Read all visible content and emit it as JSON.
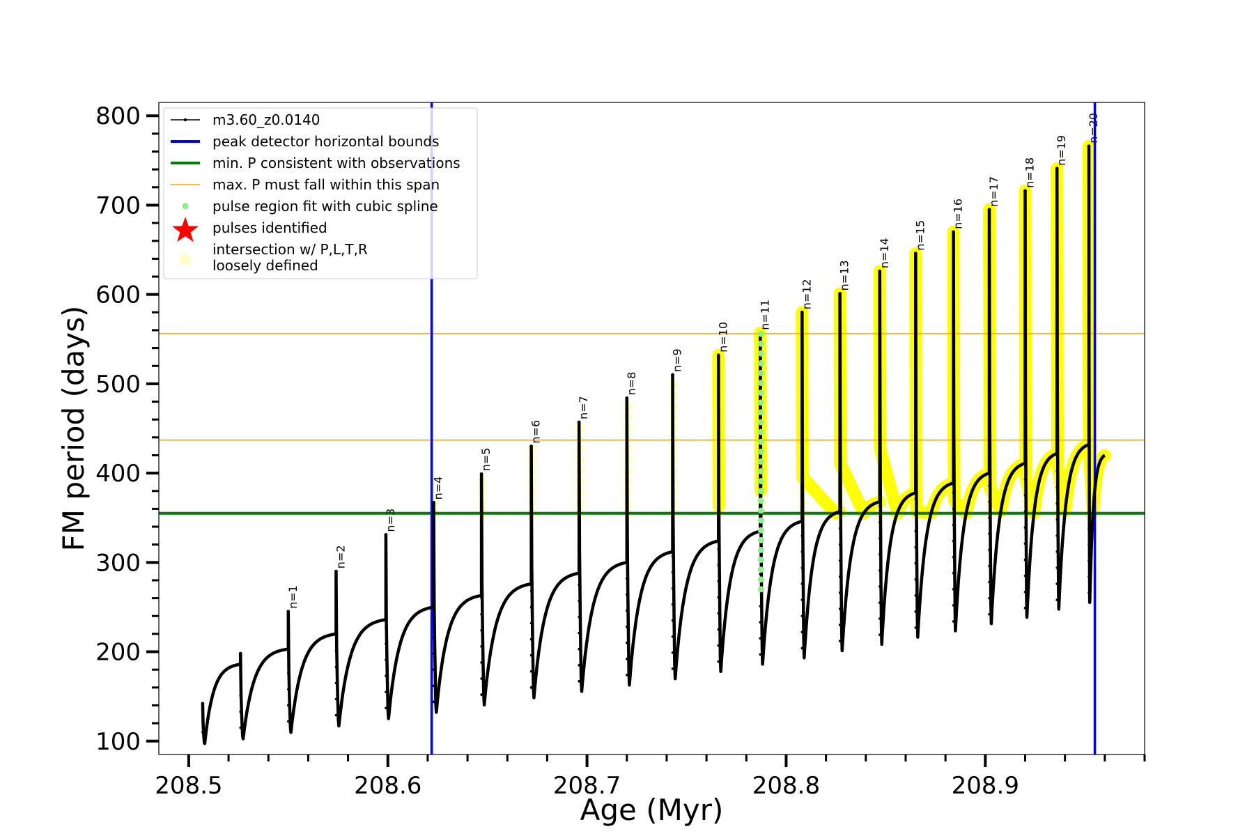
{
  "chart_data": {
    "type": "line",
    "xlabel": "Age (Myr)",
    "ylabel": "FM period (days)",
    "xlim": [
      208.485,
      208.98
    ],
    "ylim": [
      85,
      815
    ],
    "xticks": [
      208.5,
      208.6,
      208.7,
      208.8,
      208.9
    ],
    "yticks": [
      100,
      200,
      300,
      400,
      500,
      600,
      700,
      800
    ],
    "grid": false,
    "legend_position": "top-left",
    "horizontal_lines": [
      {
        "name": "min. P consistent with observations",
        "y": 355,
        "color": "#008000"
      },
      {
        "name": "max. P must fall within this span",
        "y": 437,
        "color": "#ffa500"
      },
      {
        "name": "max. P must fall within this span",
        "y": 556,
        "color": "#ffa500"
      }
    ],
    "vertical_lines": [
      {
        "name": "peak detector horizontal bounds",
        "x": 208.622,
        "color": "#0000ff"
      },
      {
        "name": "peak detector horizontal bounds",
        "x": 208.955,
        "color": "#0000ff"
      }
    ],
    "legend": [
      {
        "label": "m3.60_z0.0140",
        "marker": "line-dot",
        "color": "#000000"
      },
      {
        "label": "peak detector horizontal bounds",
        "marker": "line",
        "color": "#0000ff"
      },
      {
        "label": "min. P consistent with observations",
        "marker": "line",
        "color": "#008000"
      },
      {
        "label": "max. P must fall within this span",
        "marker": "line-thin",
        "color": "#ffa500"
      },
      {
        "label": "pulse region fit with cubic spline",
        "marker": "dot",
        "color": "#90ee90"
      },
      {
        "label": "pulses identified",
        "marker": "star",
        "color": "#ff0000"
      },
      {
        "label": "intersection w/ P,L,T,R",
        "label2": "loosely defined",
        "marker": "dot-big",
        "color": "#ffff99"
      }
    ],
    "series": [
      {
        "name": "m3.60_z0.0140",
        "color": "#000000",
        "cycles": [
          {
            "start": 208.507,
            "end": 208.526,
            "spike": 142,
            "min": 95,
            "plateau": 186
          },
          {
            "start": 208.526,
            "end": 208.55,
            "spike": 198,
            "min": 100,
            "plateau": 203
          },
          {
            "start": 208.55,
            "end": 208.574,
            "spike": 245,
            "min": 107,
            "plateau": 220
          },
          {
            "start": 208.574,
            "end": 208.599,
            "spike": 290,
            "min": 114,
            "plateau": 236
          },
          {
            "start": 208.599,
            "end": 208.623,
            "spike": 331,
            "min": 122,
            "plateau": 250
          },
          {
            "start": 208.623,
            "end": 208.647,
            "spike": 367,
            "min": 129,
            "plateau": 263
          },
          {
            "start": 208.647,
            "end": 208.672,
            "spike": 399,
            "min": 137,
            "plateau": 276
          },
          {
            "start": 208.672,
            "end": 208.696,
            "spike": 430,
            "min": 145,
            "plateau": 288
          },
          {
            "start": 208.696,
            "end": 208.72,
            "spike": 457,
            "min": 152,
            "plateau": 300
          },
          {
            "start": 208.72,
            "end": 208.743,
            "spike": 484,
            "min": 159,
            "plateau": 312
          },
          {
            "start": 208.743,
            "end": 208.766,
            "spike": 510,
            "min": 166,
            "plateau": 324
          },
          {
            "start": 208.766,
            "end": 208.787,
            "spike": 532,
            "min": 174,
            "plateau": 335
          },
          {
            "start": 208.787,
            "end": 208.808,
            "spike": 557,
            "min": 182,
            "plateau": 346
          },
          {
            "start": 208.808,
            "end": 208.827,
            "spike": 580,
            "min": 189,
            "plateau": 357
          },
          {
            "start": 208.827,
            "end": 208.847,
            "spike": 601,
            "min": 197,
            "plateau": 368
          },
          {
            "start": 208.847,
            "end": 208.865,
            "spike": 626,
            "min": 204,
            "plateau": 378
          },
          {
            "start": 208.865,
            "end": 208.884,
            "spike": 646,
            "min": 212,
            "plateau": 389
          },
          {
            "start": 208.884,
            "end": 208.902,
            "spike": 670,
            "min": 219,
            "plateau": 400
          },
          {
            "start": 208.902,
            "end": 208.92,
            "spike": 695,
            "min": 227,
            "plateau": 411
          },
          {
            "start": 208.92,
            "end": 208.936,
            "spike": 716,
            "min": 234,
            "plateau": 422
          },
          {
            "start": 208.936,
            "end": 208.952,
            "spike": 741,
            "min": 243,
            "plateau": 432
          },
          {
            "start": 208.952,
            "end": 208.96,
            "spike": 766,
            "min": 251,
            "plateau": 420
          }
        ]
      }
    ],
    "pulses": [
      {
        "label": "n=1",
        "x": 208.55,
        "peak": 245
      },
      {
        "label": "n=2",
        "x": 208.574,
        "peak": 290
      },
      {
        "label": "n=3",
        "x": 208.599,
        "peak": 331
      },
      {
        "label": "n=4",
        "x": 208.623,
        "peak": 367
      },
      {
        "label": "n=5",
        "x": 208.647,
        "peak": 399
      },
      {
        "label": "n=6",
        "x": 208.672,
        "peak": 430
      },
      {
        "label": "n=7",
        "x": 208.696,
        "peak": 457
      },
      {
        "label": "n=8",
        "x": 208.72,
        "peak": 484
      },
      {
        "label": "n=9",
        "x": 208.743,
        "peak": 510
      },
      {
        "label": "n=10",
        "x": 208.766,
        "peak": 532
      },
      {
        "label": "n=11",
        "x": 208.787,
        "peak": 557
      },
      {
        "label": "n=12",
        "x": 208.808,
        "peak": 580
      },
      {
        "label": "n=13",
        "x": 208.827,
        "peak": 601
      },
      {
        "label": "n=14",
        "x": 208.847,
        "peak": 626
      },
      {
        "label": "n=15",
        "x": 208.865,
        "peak": 646
      },
      {
        "label": "n=16",
        "x": 208.884,
        "peak": 670
      },
      {
        "label": "n=17",
        "x": 208.902,
        "peak": 695
      },
      {
        "label": "n=18",
        "x": 208.92,
        "peak": 716
      },
      {
        "label": "n=19",
        "x": 208.936,
        "peak": 741
      },
      {
        "label": "n=20",
        "x": 208.952,
        "peak": 766
      }
    ],
    "spline_region": {
      "x": 208.787,
      "ymin": 270,
      "ymax": 557,
      "color": "#90ee90"
    }
  }
}
